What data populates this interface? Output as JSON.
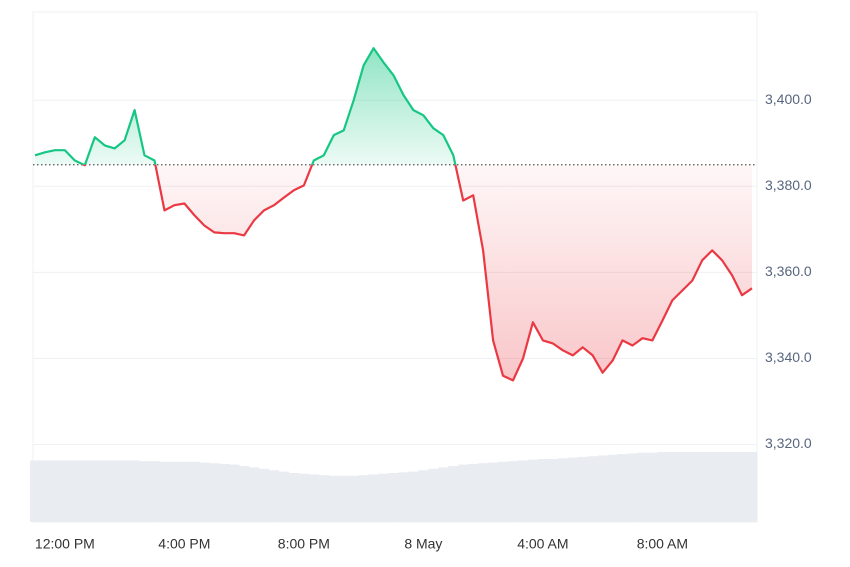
{
  "chart_data": {
    "type": "line",
    "x": [
      "11:00 AM",
      "11:20 AM",
      "11:40 AM",
      "12:00 PM",
      "12:20 PM",
      "12:40 PM",
      "1:00 PM",
      "1:20 PM",
      "1:40 PM",
      "2:00 PM",
      "2:20 PM",
      "2:40 PM",
      "3:00 PM",
      "3:20 PM",
      "3:40 PM",
      "4:00 PM",
      "4:20 PM",
      "4:40 PM",
      "5:00 PM",
      "5:20 PM",
      "5:40 PM",
      "6:00 PM",
      "6:20 PM",
      "6:40 PM",
      "7:00 PM",
      "7:20 PM",
      "7:40 PM",
      "8:00 PM",
      "8:20 PM",
      "8:40 PM",
      "9:00 PM",
      "9:20 PM",
      "9:40 PM",
      "10:00 PM",
      "10:20 PM",
      "10:40 PM",
      "11:00 PM",
      "11:20 PM",
      "11:40 PM",
      "12:00 AM",
      "12:20 AM",
      "12:40 AM",
      "1:00 AM",
      "1:20 AM",
      "1:40 AM",
      "2:00 AM",
      "2:20 AM",
      "2:40 AM",
      "3:00 AM",
      "3:20 AM",
      "3:40 AM",
      "4:00 AM",
      "4:20 AM",
      "4:40 AM",
      "5:00 AM",
      "5:20 AM",
      "5:40 AM",
      "6:00 AM",
      "6:20 AM",
      "6:40 AM",
      "7:00 AM",
      "7:20 AM",
      "7:40 AM",
      "8:00 AM",
      "8:20 AM",
      "8:40 AM",
      "9:00 AM",
      "9:20 AM",
      "9:40 AM",
      "10:00 AM",
      "10:20 AM",
      "10:40 AM",
      "11:00 AM"
    ],
    "values": [
      3387.2,
      3387.9,
      3388.4,
      3388.4,
      3386.0,
      3384.9,
      3391.4,
      3389.5,
      3388.8,
      3390.7,
      3397.7,
      3387.2,
      3386.0,
      3374.4,
      3375.6,
      3376.0,
      3373.3,
      3370.9,
      3369.3,
      3369.1,
      3369.1,
      3368.6,
      3372.1,
      3374.4,
      3375.6,
      3377.4,
      3379.1,
      3380.2,
      3386.0,
      3387.2,
      3391.9,
      3393.0,
      3400.0,
      3408.1,
      3412.1,
      3408.8,
      3405.8,
      3401.2,
      3397.7,
      3396.5,
      3393.5,
      3391.9,
      3387.2,
      3376.7,
      3377.9,
      3365.1,
      3344.2,
      3336.0,
      3334.9,
      3340.0,
      3348.4,
      3344.2,
      3343.5,
      3341.9,
      3340.7,
      3342.6,
      3340.7,
      3336.7,
      3339.5,
      3344.2,
      3343.0,
      3344.7,
      3344.2,
      3348.8,
      3353.5,
      3355.8,
      3358.1,
      3362.8,
      3365.1,
      3362.8,
      3359.3,
      3354.7,
      3356.3
    ],
    "volume": [
      88,
      88,
      88,
      88,
      88,
      88,
      88,
      88,
      88,
      88,
      88,
      87,
      87,
      86,
      86,
      86,
      86,
      85,
      84,
      83,
      82,
      80,
      78,
      76,
      74,
      72,
      70,
      69,
      68,
      67,
      66,
      66,
      66,
      67,
      68,
      69,
      70,
      71,
      72,
      74,
      76,
      78,
      80,
      82,
      83,
      84,
      85,
      86,
      87,
      88,
      89,
      90,
      90,
      91,
      92,
      93,
      94,
      95,
      96,
      97,
      98,
      99,
      99,
      100,
      100,
      100,
      100,
      100,
      100,
      100,
      100,
      100,
      100
    ],
    "baseline": 3385,
    "up_color": "#16c784",
    "down_color": "#ea3943",
    "ylim": [
      3302,
      3420.5
    ],
    "yticks": [
      {
        "value": 3320,
        "label": "3,320.0"
      },
      {
        "value": 3340,
        "label": "3,340.0"
      },
      {
        "value": 3360,
        "label": "3,360.0"
      },
      {
        "value": 3380,
        "label": "3,380.0"
      },
      {
        "value": 3400,
        "label": "3,400.0"
      }
    ],
    "xticks": [
      "12:00 PM",
      "4:00 PM",
      "8:00 PM",
      {
        "value": "12:00 AM",
        "label": "8 May"
      },
      "4:00 AM",
      "8:00 AM"
    ],
    "grid": true
  }
}
